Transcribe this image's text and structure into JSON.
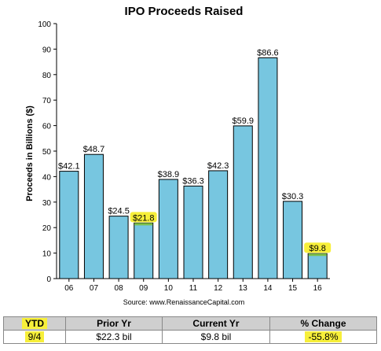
{
  "chart_data": {
    "type": "bar",
    "title": "IPO Proceeds Raised",
    "xlabel": "",
    "ylabel": "Proceeds in Billions ($)",
    "ylim": [
      0,
      100
    ],
    "yticks": [
      0,
      10,
      20,
      30,
      40,
      50,
      60,
      70,
      80,
      90,
      100
    ],
    "categories": [
      "06",
      "07",
      "08",
      "09",
      "10",
      "11",
      "12",
      "13",
      "14",
      "15",
      "16"
    ],
    "values": [
      42.1,
      48.7,
      24.5,
      21.8,
      38.9,
      36.3,
      42.3,
      59.9,
      86.6,
      30.3,
      9.8
    ],
    "value_labels": [
      "$42.1",
      "$48.7",
      "$24.5",
      "$21.8",
      "$38.9",
      "$36.3",
      "$42.3",
      "$59.9",
      "$86.6",
      "$30.3",
      "$9.8"
    ],
    "highlighted_categories": [
      "09",
      "16"
    ],
    "source": "Source: www.RenaissanceCapital.com",
    "grid": false,
    "colors": {
      "bar": "#77c6e0",
      "bar_border": "#000000",
      "highlight": "#f7ef3a",
      "highlight_bar_top": "#7cc04a"
    }
  },
  "ytd_table": {
    "headers": {
      "col1": "YTD",
      "col2": "Prior Yr",
      "col3": "Current Yr",
      "col4": "% Change"
    },
    "row": {
      "col1": "9/4",
      "col2": "$22.3 bil",
      "col3": "$9.8 bil",
      "col4": "-55.8%"
    }
  }
}
